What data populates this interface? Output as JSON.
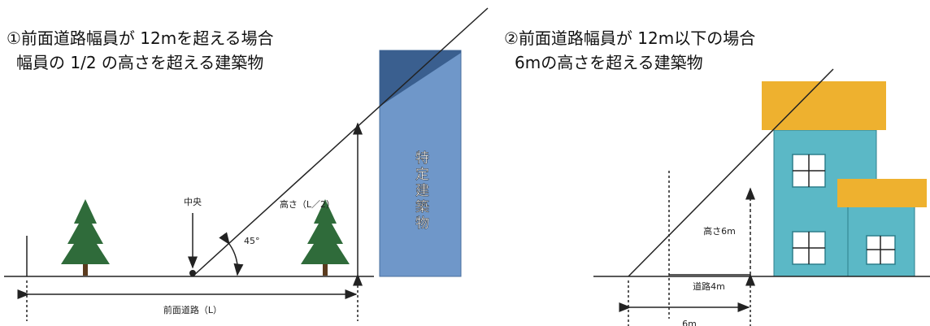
{
  "left": {
    "title1": "①前面道路幅員が 12mを超える場合",
    "title2": "幅員の 1/2 の高さを超える建築物",
    "center": "中央",
    "angle": "45°",
    "height": "高さ（L／2）",
    "building": "特定建築物",
    "road": "前面道路（L）"
  },
  "right": {
    "title1": "②前面道路幅員が 12m以下の場合",
    "title2": "6mの高さを超える建築物",
    "height": "高さ6m",
    "road": "道路4m",
    "width": "6m"
  }
}
